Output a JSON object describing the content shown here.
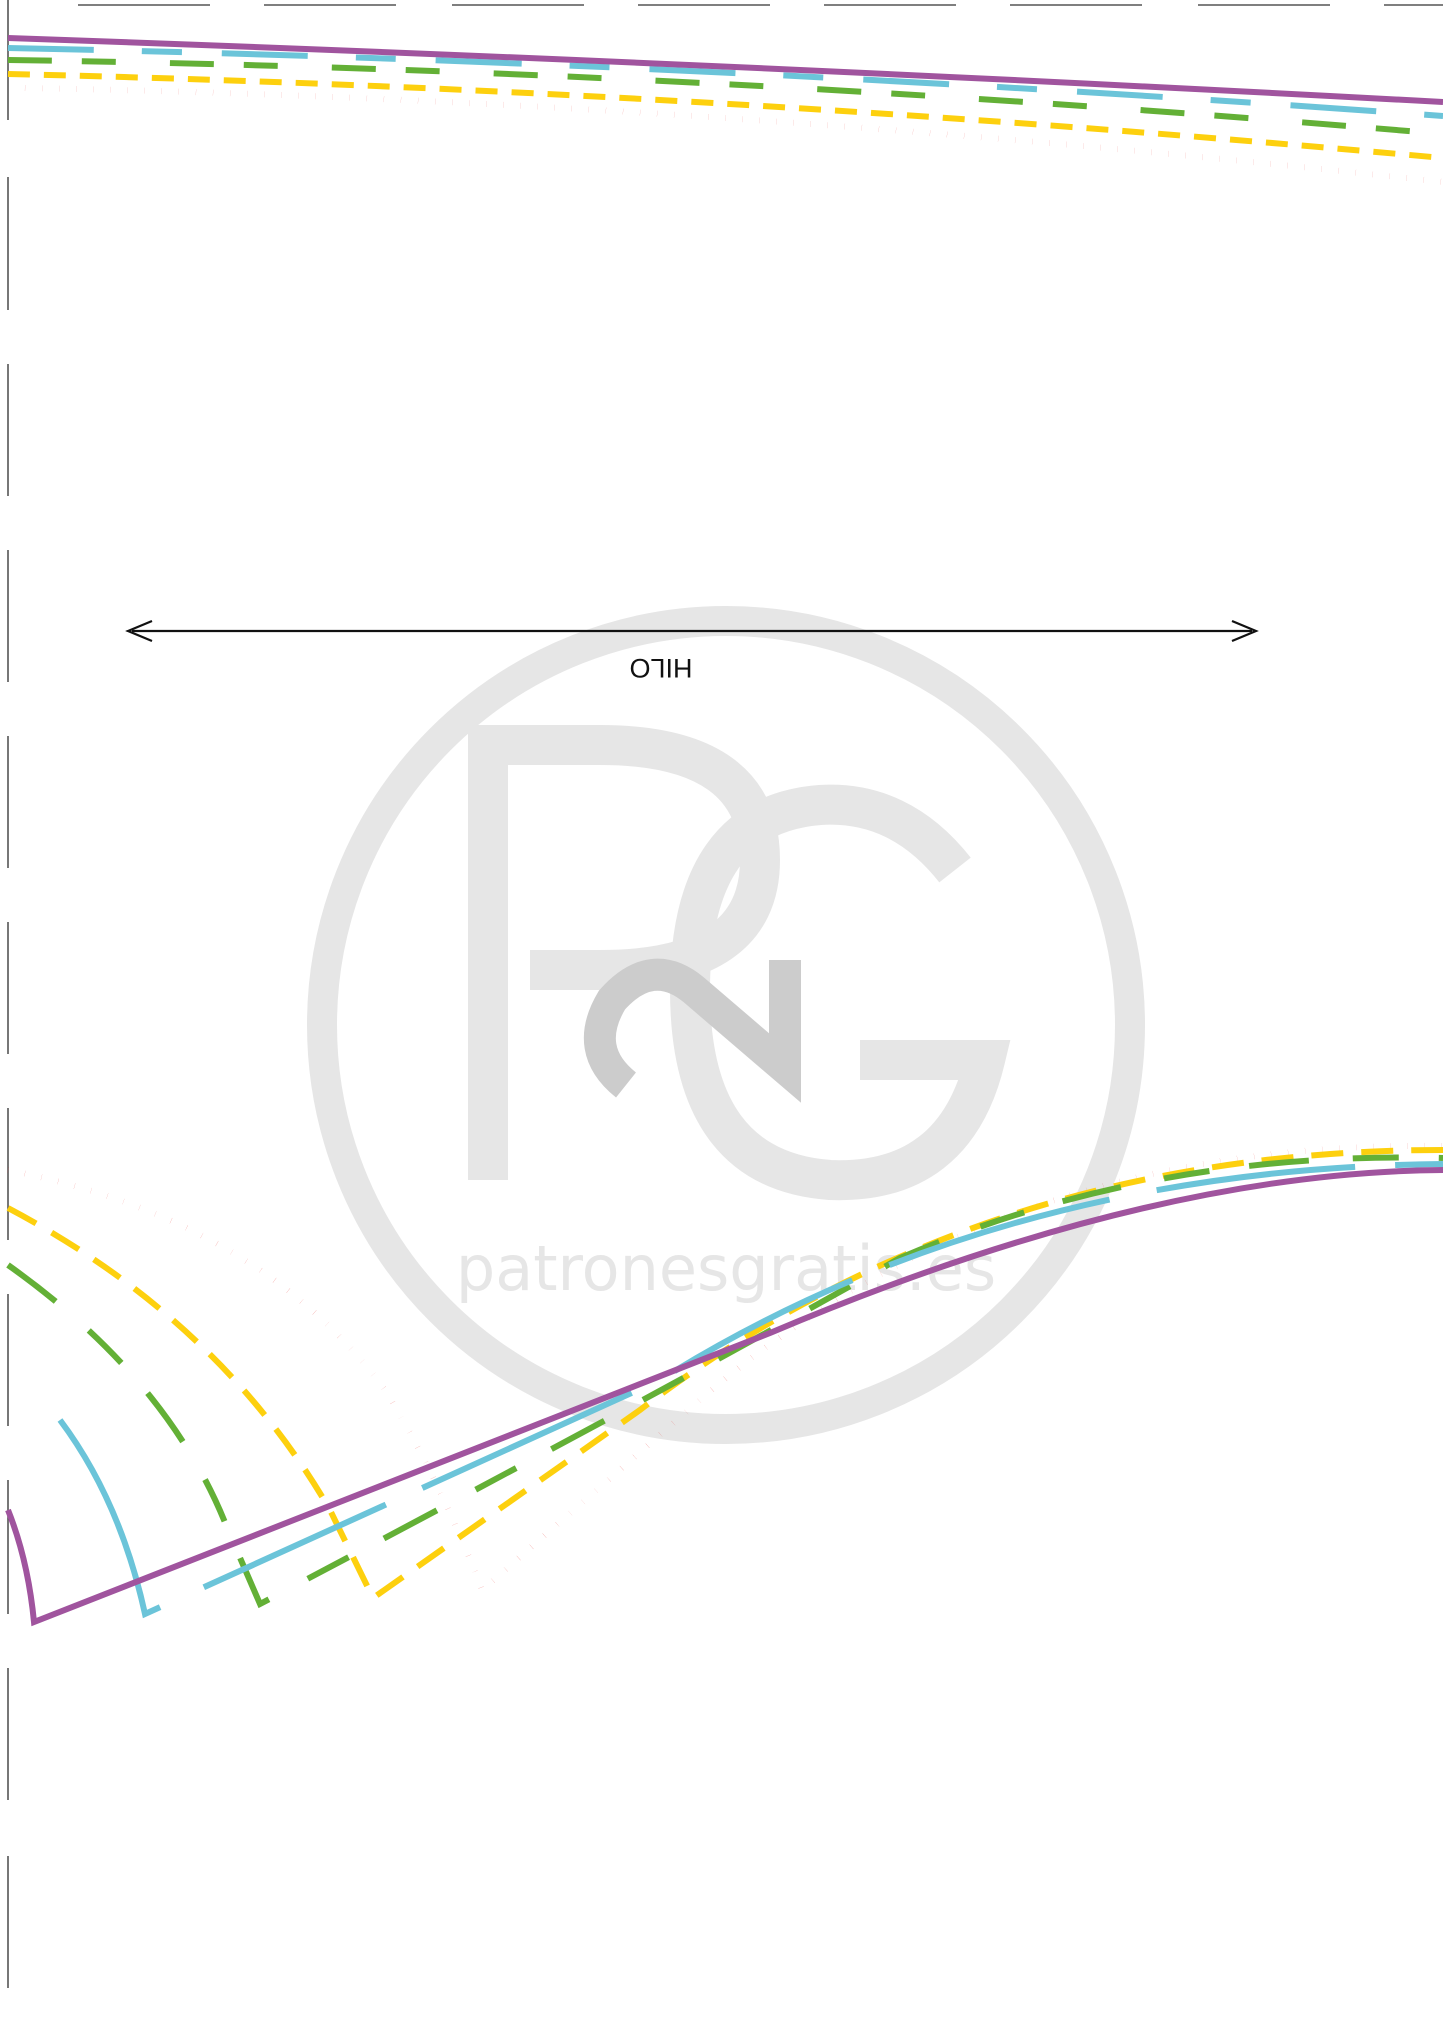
{
  "grain_line": {
    "label": "HILO"
  },
  "watermark": {
    "text": "patronesgratis.es",
    "logo_letters": "PG"
  },
  "colors": {
    "size_1": "#a0549e",
    "size_2": "#6bc4d9",
    "size_3": "#63b036",
    "size_4": "#fdd00e",
    "size_5": "#e52a25",
    "trim_mark": "#555555",
    "watermark": "#e6e6e6",
    "watermark_dark": "#cccccc"
  },
  "size_lines": [
    {
      "name": "size-1-solid",
      "style": "solid"
    },
    {
      "name": "size-2-long-dash",
      "style": "long-dash"
    },
    {
      "name": "size-3-dash",
      "style": "dash"
    },
    {
      "name": "size-4-short-dash",
      "style": "short-dash"
    },
    {
      "name": "size-5-dotted",
      "style": "dotted"
    }
  ]
}
